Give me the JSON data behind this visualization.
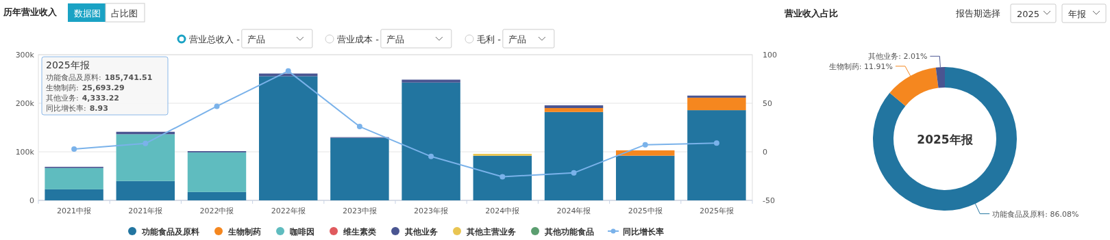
{
  "chart_data": [
    {
      "type": "bar",
      "title": "历年营业收入",
      "stacked": true,
      "categories": [
        "2021中报",
        "2021年报",
        "2022中报",
        "2022年报",
        "2023中报",
        "2023年报",
        "2024中报",
        "2024年报",
        "2025中报",
        "2025年报"
      ],
      "series": [
        {
          "name": "功能食品及原料",
          "color": "#2275a0",
          "values": [
            22700,
            39800,
            17100,
            255700,
            128600,
            242600,
            91800,
            182000,
            92000,
            185741.51
          ]
        },
        {
          "name": "生物制药",
          "color": "#f5871f",
          "values": [
            null,
            null,
            null,
            null,
            null,
            null,
            null,
            8100,
            11000,
            25693.29
          ]
        },
        {
          "name": "咖啡因",
          "color": "#5fbcbf",
          "values": [
            43900,
            96400,
            81700,
            null,
            null,
            null,
            null,
            null,
            null,
            null
          ]
        },
        {
          "name": "维生素类",
          "color": "#e05a5e",
          "values": [
            null,
            null,
            null,
            null,
            null,
            null,
            null,
            null,
            null,
            null
          ]
        },
        {
          "name": "其他业务",
          "color": "#4a5591",
          "values": [
            2500,
            5000,
            2600,
            5500,
            1500,
            6000,
            null,
            5600,
            null,
            4333.22
          ]
        },
        {
          "name": "其他主营业务",
          "color": "#e9c552",
          "values": [
            null,
            null,
            null,
            null,
            null,
            null,
            4000,
            null,
            null,
            null
          ]
        },
        {
          "name": "其他功能食品",
          "color": "#5b9e70",
          "values": [
            null,
            null,
            null,
            null,
            null,
            null,
            null,
            null,
            null,
            null
          ]
        },
        {
          "name": "同比增长率",
          "type": "line",
          "axis": "y2",
          "color": "#7ab2ea",
          "values": [
            2.8,
            8.6,
            46.9,
            83.2,
            26.0,
            -4.8,
            -25.7,
            -21.7,
            7.3,
            8.93
          ]
        }
      ],
      "ylim": [
        0,
        300000
      ],
      "yticks": [
        {
          "value": 0,
          "label": "0"
        },
        {
          "value": 100000,
          "label": "100k"
        },
        {
          "value": 200000,
          "label": "200k"
        },
        {
          "value": 300000,
          "label": "300k"
        }
      ],
      "y2lim": [
        -50,
        100
      ],
      "y2ticks": [
        -50,
        0,
        50,
        100
      ],
      "grid": "y",
      "legend": "bottom",
      "marker": "circle",
      "annotations": [
        "数据图",
        "占比图",
        "营业总收入 -",
        "产品",
        "营业成本 -",
        "产品",
        "毛利 -",
        "产品",
        "2025年报",
        "功能食品及原料:",
        "185,741.51",
        "生物制药:",
        "25,693.29",
        "其他业务:",
        "4,333.22",
        "同比增长率:",
        "8.93"
      ]
    },
    {
      "type": "donut",
      "title": "营业收入占比",
      "categories": [
        "功能食品及原料",
        "生物制药",
        "其他业务"
      ],
      "values": [
        86.08,
        11.91,
        2.01
      ],
      "colors": [
        "#2275a0",
        "#f5871f",
        "#4a5591"
      ],
      "value_labels": [
        "86.08%",
        "11.91%",
        "2.01%"
      ],
      "annotations": [
        "2025年报",
        "报告期选择",
        "2025",
        "年报"
      ]
    }
  ]
}
